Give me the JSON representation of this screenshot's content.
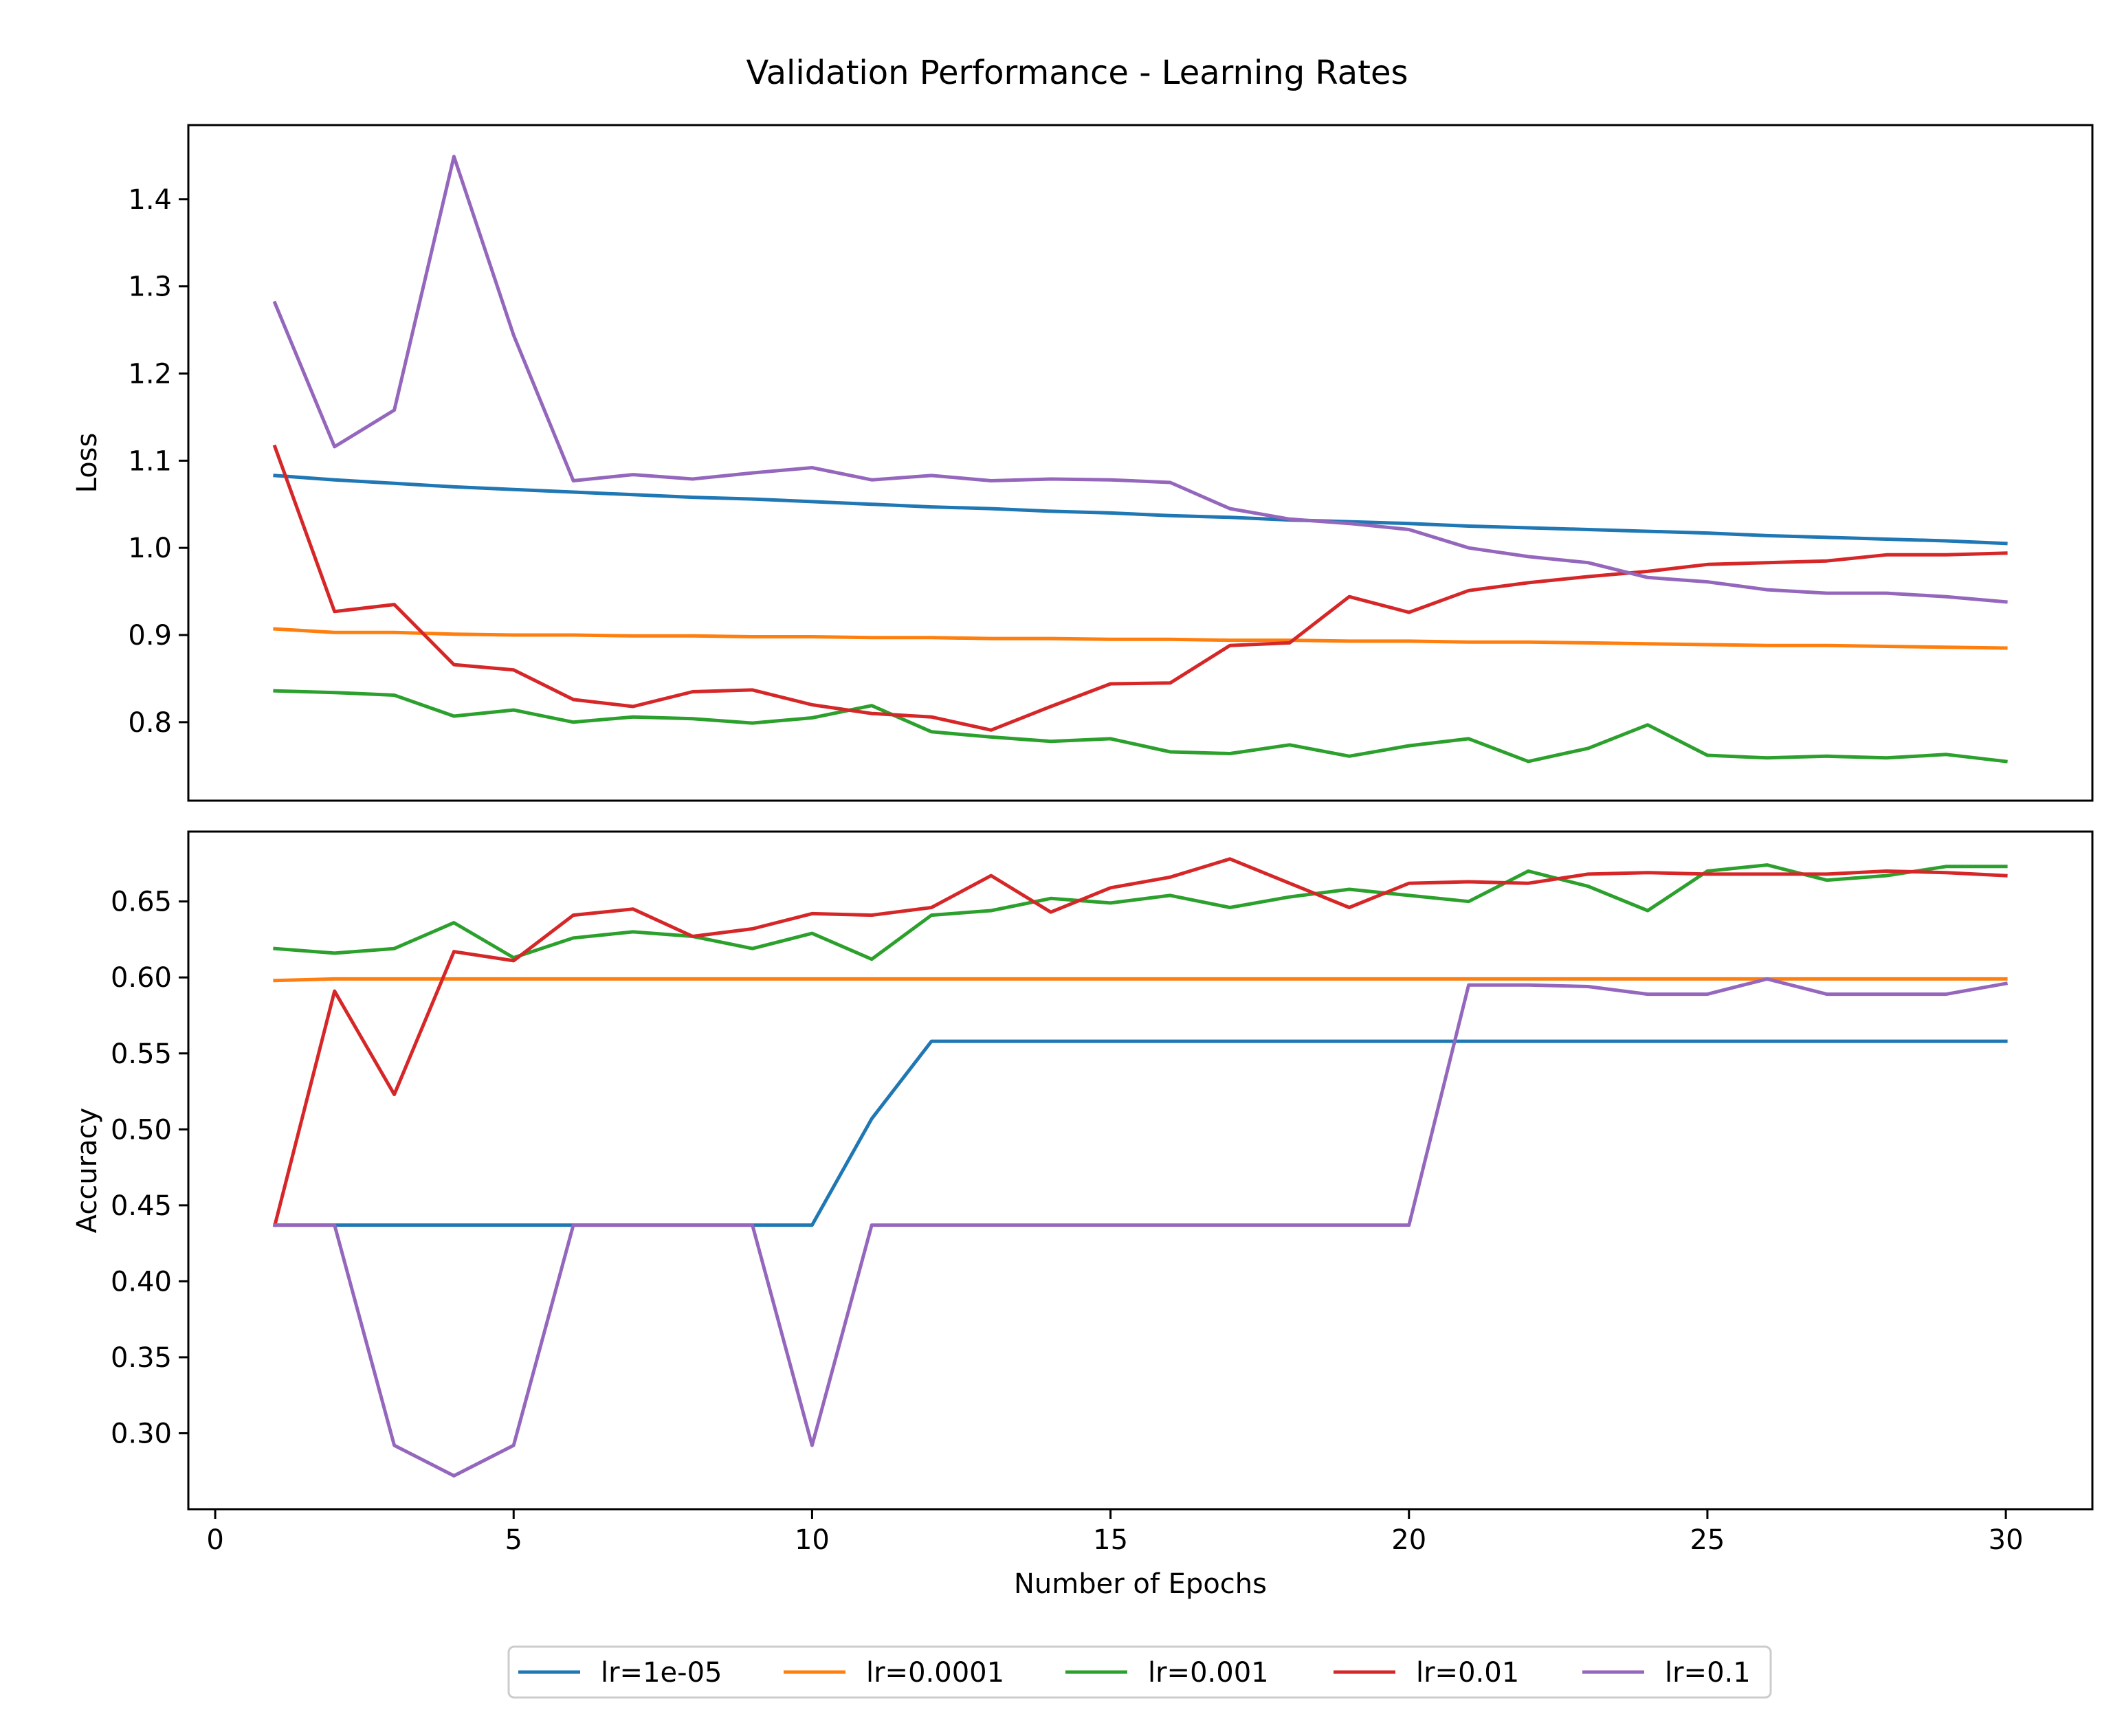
{
  "chart_data": {
    "title": "Validation Performance - Learning Rates",
    "type": "line",
    "x": [
      1,
      2,
      3,
      4,
      5,
      6,
      7,
      8,
      9,
      10,
      11,
      12,
      13,
      14,
      15,
      16,
      17,
      18,
      19,
      20,
      21,
      22,
      23,
      24,
      25,
      26,
      27,
      28,
      29,
      30
    ],
    "xlabel": "Number of Epochs",
    "xlim": [
      -0.45,
      31.45
    ],
    "xticks": [
      0,
      5,
      10,
      15,
      20,
      25,
      30
    ],
    "legend": {
      "placement": "bottom-center",
      "ncol": 5
    },
    "series_styles": [
      {
        "name": "lr=1e-05",
        "color": "#1f77b4"
      },
      {
        "name": "lr=0.0001",
        "color": "#ff7f0e"
      },
      {
        "name": "lr=0.001",
        "color": "#2ca02c"
      },
      {
        "name": "lr=0.01",
        "color": "#d62728"
      },
      {
        "name": "lr=0.1",
        "color": "#9467bd"
      }
    ],
    "panels": [
      {
        "ylabel": "Loss",
        "ylim": [
          0.71,
          1.485
        ],
        "yticks": [
          0.8,
          0.9,
          1.0,
          1.1,
          1.2,
          1.3,
          1.4
        ],
        "ytick_labels": [
          "0.8",
          "0.9",
          "1.0",
          "1.1",
          "1.2",
          "1.3",
          "1.4"
        ],
        "series": [
          {
            "name": "lr=1e-05",
            "values": [
              1.083,
              1.078,
              1.074,
              1.07,
              1.067,
              1.064,
              1.061,
              1.058,
              1.056,
              1.053,
              1.05,
              1.047,
              1.045,
              1.042,
              1.04,
              1.037,
              1.035,
              1.032,
              1.03,
              1.028,
              1.025,
              1.023,
              1.021,
              1.019,
              1.017,
              1.014,
              1.012,
              1.01,
              1.008,
              1.005
            ]
          },
          {
            "name": "lr=0.0001",
            "values": [
              0.907,
              0.903,
              0.903,
              0.901,
              0.9,
              0.9,
              0.899,
              0.899,
              0.898,
              0.898,
              0.897,
              0.897,
              0.896,
              0.896,
              0.895,
              0.895,
              0.894,
              0.894,
              0.893,
              0.893,
              0.892,
              0.892,
              0.891,
              0.89,
              0.889,
              0.888,
              0.888,
              0.887,
              0.886,
              0.885
            ]
          },
          {
            "name": "lr=0.001",
            "values": [
              0.836,
              0.834,
              0.831,
              0.807,
              0.814,
              0.8,
              0.806,
              0.804,
              0.799,
              0.805,
              0.819,
              0.789,
              0.783,
              0.778,
              0.781,
              0.766,
              0.764,
              0.774,
              0.761,
              0.773,
              0.781,
              0.755,
              0.77,
              0.797,
              0.762,
              0.759,
              0.761,
              0.759,
              0.763,
              0.755
            ]
          },
          {
            "name": "lr=0.01",
            "values": [
              1.116,
              0.927,
              0.935,
              0.866,
              0.86,
              0.826,
              0.818,
              0.835,
              0.837,
              0.82,
              0.81,
              0.806,
              0.791,
              0.818,
              0.844,
              0.845,
              0.888,
              0.891,
              0.944,
              0.926,
              0.951,
              0.96,
              0.967,
              0.973,
              0.981,
              0.983,
              0.985,
              0.992,
              0.992,
              0.994
            ]
          },
          {
            "name": "lr=0.1",
            "values": [
              1.281,
              1.116,
              1.158,
              1.449,
              1.244,
              1.077,
              1.084,
              1.079,
              1.086,
              1.092,
              1.078,
              1.083,
              1.077,
              1.079,
              1.078,
              1.075,
              1.045,
              1.033,
              1.028,
              1.021,
              1.0,
              0.99,
              0.983,
              0.966,
              0.961,
              0.952,
              0.948,
              0.948,
              0.944,
              0.938
            ]
          }
        ]
      },
      {
        "ylabel": "Accuracy",
        "ylim": [
          0.25,
          0.696
        ],
        "yticks": [
          0.3,
          0.35,
          0.4,
          0.45,
          0.5,
          0.55,
          0.6,
          0.65
        ],
        "ytick_labels": [
          "0.30",
          "0.35",
          "0.40",
          "0.45",
          "0.50",
          "0.55",
          "0.60",
          "0.65"
        ],
        "series": [
          {
            "name": "lr=1e-05",
            "values": [
              0.437,
              0.437,
              0.437,
              0.437,
              0.437,
              0.437,
              0.437,
              0.437,
              0.437,
              0.437,
              0.507,
              0.558,
              0.558,
              0.558,
              0.558,
              0.558,
              0.558,
              0.558,
              0.558,
              0.558,
              0.558,
              0.558,
              0.558,
              0.558,
              0.558,
              0.558,
              0.558,
              0.558,
              0.558,
              0.558
            ]
          },
          {
            "name": "lr=0.0001",
            "values": [
              0.598,
              0.599,
              0.599,
              0.599,
              0.599,
              0.599,
              0.599,
              0.599,
              0.599,
              0.599,
              0.599,
              0.599,
              0.599,
              0.599,
              0.599,
              0.599,
              0.599,
              0.599,
              0.599,
              0.599,
              0.599,
              0.599,
              0.599,
              0.599,
              0.599,
              0.599,
              0.599,
              0.599,
              0.599,
              0.599
            ]
          },
          {
            "name": "lr=0.001",
            "values": [
              0.619,
              0.616,
              0.619,
              0.636,
              0.613,
              0.626,
              0.63,
              0.627,
              0.619,
              0.629,
              0.612,
              0.641,
              0.644,
              0.652,
              0.649,
              0.654,
              0.646,
              0.653,
              0.658,
              0.654,
              0.65,
              0.67,
              0.66,
              0.644,
              0.67,
              0.674,
              0.664,
              0.667,
              0.673,
              0.673
            ]
          },
          {
            "name": "lr=0.01",
            "values": [
              0.437,
              0.591,
              0.523,
              0.617,
              0.611,
              0.641,
              0.645,
              0.627,
              0.632,
              0.642,
              0.641,
              0.646,
              0.667,
              0.643,
              0.659,
              0.666,
              0.678,
              0.662,
              0.646,
              0.662,
              0.663,
              0.662,
              0.668,
              0.669,
              0.668,
              0.668,
              0.668,
              0.67,
              0.669,
              0.667
            ]
          },
          {
            "name": "lr=0.1",
            "values": [
              0.437,
              0.437,
              0.292,
              0.272,
              0.292,
              0.437,
              0.437,
              0.437,
              0.437,
              0.292,
              0.437,
              0.437,
              0.437,
              0.437,
              0.437,
              0.437,
              0.437,
              0.437,
              0.437,
              0.437,
              0.595,
              0.595,
              0.594,
              0.589,
              0.589,
              0.599,
              0.589,
              0.589,
              0.589,
              0.596
            ]
          }
        ]
      }
    ]
  }
}
